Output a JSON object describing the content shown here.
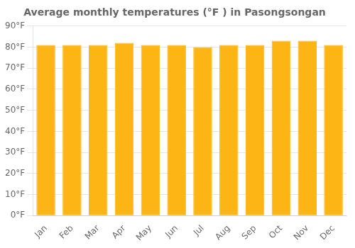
{
  "chart_data": {
    "type": "bar",
    "title": "Average monthly temperatures (°F ) in Pasongsongan",
    "categories": [
      "Jan",
      "Feb",
      "Mar",
      "Apr",
      "May",
      "Jun",
      "Jul",
      "Aug",
      "Sep",
      "Oct",
      "Nov",
      "Dec"
    ],
    "values": [
      81,
      81,
      81,
      82,
      81,
      81,
      80,
      81,
      81,
      83,
      83,
      81
    ],
    "color": "#FDB515",
    "ylim": [
      0,
      90
    ],
    "yticks": [
      {
        "value": 0,
        "label": "0°F"
      },
      {
        "value": 10,
        "label": "10°F"
      },
      {
        "value": 20,
        "label": "20°F"
      },
      {
        "value": 30,
        "label": "30°F"
      },
      {
        "value": 40,
        "label": "40°F"
      },
      {
        "value": 50,
        "label": "50°F"
      },
      {
        "value": 60,
        "label": "60°F"
      },
      {
        "value": 70,
        "label": "70°F"
      },
      {
        "value": 80,
        "label": "80°F"
      },
      {
        "value": 90,
        "label": "90°F"
      }
    ],
    "grid": true
  }
}
